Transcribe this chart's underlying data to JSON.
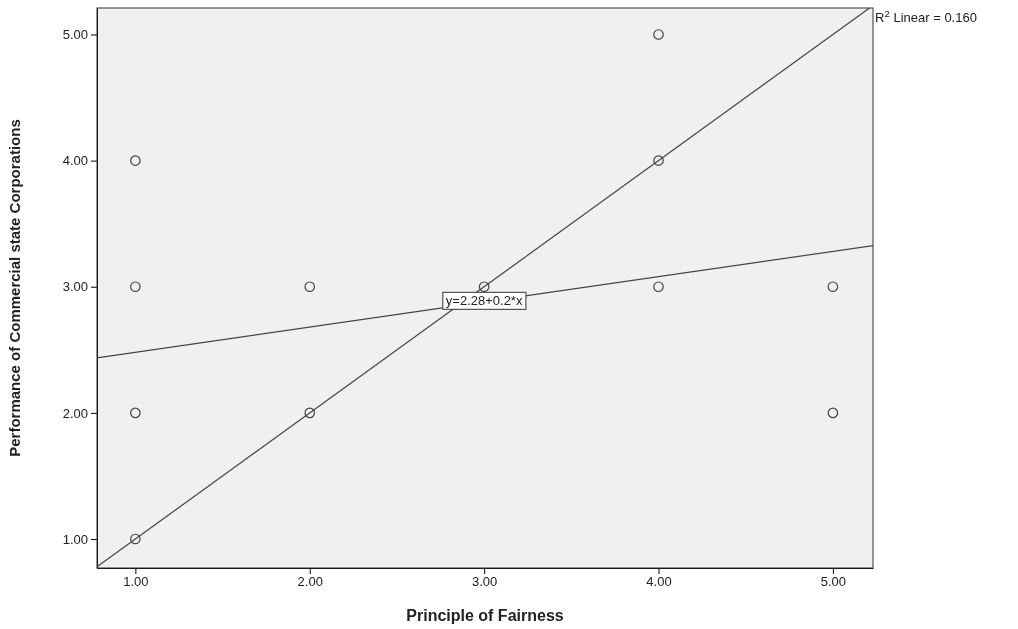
{
  "chart_data": {
    "type": "scatter",
    "xlabel": "Principle of Fairness",
    "ylabel": "Performance of Commercial state Corporations",
    "xlim": [
      0.78,
      5.23
    ],
    "ylim": [
      0.77,
      5.21
    ],
    "xticks": [
      {
        "value": 1,
        "label": "1.00"
      },
      {
        "value": 2,
        "label": "2.00"
      },
      {
        "value": 3,
        "label": "3.00"
      },
      {
        "value": 4,
        "label": "4.00"
      },
      {
        "value": 5,
        "label": "5.00"
      }
    ],
    "yticks": [
      {
        "value": 1,
        "label": "1.00"
      },
      {
        "value": 2,
        "label": "2.00"
      },
      {
        "value": 3,
        "label": "3.00"
      },
      {
        "value": 4,
        "label": "4.00"
      },
      {
        "value": 5,
        "label": "5.00"
      }
    ],
    "grid": false,
    "series": [
      {
        "marker": "circle",
        "color": "#444444",
        "x": [
          1,
          1,
          1,
          1,
          2,
          2,
          3,
          4,
          4,
          4,
          5,
          5
        ],
        "values": [
          4,
          3,
          2,
          1,
          3,
          2,
          3,
          5,
          4,
          3,
          3,
          2
        ]
      },
      {
        "type": "line",
        "color": "#444444",
        "x": [
          0.78,
          5.23
        ],
        "values": [
          2.436,
          3.326
        ]
      },
      {
        "type": "line",
        "color": "#444444",
        "x": [
          0.78,
          5.21
        ],
        "values": [
          0.78,
          5.21
        ]
      }
    ],
    "annotations": [
      "R$^{2}$ Linear = 0.160",
      {
        "text": "y=2.28+0.2*x",
        "x": 3,
        "y": 2.88
      }
    ]
  }
}
